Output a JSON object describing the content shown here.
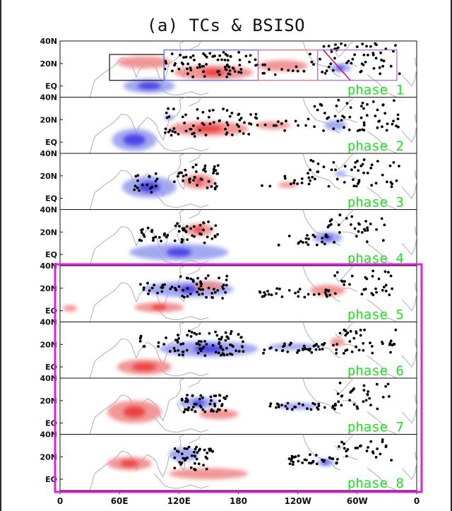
{
  "title": "(a) TCs & BSISO",
  "colors": {
    "positive": "#f08c8c",
    "positive_strong": "#ec3434",
    "negative": "#9aa0ee",
    "negative_strong": "#3c36e6",
    "dot": "#000000",
    "phase_label": "#1ee01e",
    "highlight_box": "#e01ee0",
    "coast": "#9a9a9a"
  },
  "chart_data": {
    "type": "map-panels",
    "title": "(a) TCs & BSISO",
    "lon_ticks": [
      "0",
      "60E",
      "120E",
      "180",
      "120W",
      "60W",
      "0"
    ],
    "lat_ticks": [
      "40N",
      "20N",
      "EQ"
    ],
    "x_range_deg": [
      0,
      360
    ],
    "y_range_deg": [
      -10,
      40
    ],
    "highlight_box": {
      "phases": [
        5,
        8
      ]
    },
    "panels": [
      {
        "phase": 1,
        "label": "phase 1",
        "regions": [
          {
            "name": "region-1",
            "lon": [
              50,
              105
            ],
            "lat": [
              5,
              28
            ],
            "color": "#333333"
          },
          {
            "name": "region-2",
            "lon": [
              105,
              200
            ],
            "lat": [
              5,
              32
            ],
            "color": "#6a7ae6"
          },
          {
            "name": "region-3",
            "lon": [
              200,
              260
            ],
            "lat": [
              5,
              32
            ],
            "color": "#e07a8a"
          },
          {
            "name": "region-4",
            "lon": [
              260,
              340
            ],
            "lat": [
              5,
              32
            ],
            "color": "#b27ad8"
          }
        ],
        "blobs": [
          {
            "s": "neg",
            "lon": 90,
            "lat": 0,
            "w": 52,
            "h": 13,
            "strong": 0.45
          },
          {
            "s": "pos",
            "lon": 85,
            "lat": 21,
            "w": 55,
            "h": 11,
            "strong": 0
          },
          {
            "s": "pos",
            "lon": 155,
            "lat": 12,
            "w": 80,
            "h": 13,
            "strong": 0.3
          },
          {
            "s": "pos",
            "lon": 225,
            "lat": 18,
            "w": 50,
            "h": 10,
            "strong": 0
          },
          {
            "s": "neg",
            "lon": 283,
            "lat": 16,
            "w": 22,
            "h": 8,
            "strong": 0.3
          }
        ],
        "tc": [
          {
            "lon": [
              105,
              200
            ],
            "lat": [
              8,
              30
            ],
            "n": 75
          },
          {
            "lon": [
              200,
              250
            ],
            "lat": [
              10,
              20
            ],
            "n": 12
          },
          {
            "lon": [
              250,
              345
            ],
            "lat": [
              10,
              38
            ],
            "n": 55
          }
        ]
      },
      {
        "phase": 2,
        "label": "phase 2",
        "blobs": [
          {
            "s": "neg",
            "lon": 75,
            "lat": 2,
            "w": 45,
            "h": 20,
            "strong": 0.5
          },
          {
            "s": "neg",
            "lon": 110,
            "lat": 22,
            "w": 10,
            "h": 5,
            "strong": 0
          },
          {
            "s": "pos",
            "lon": 150,
            "lat": 12,
            "w": 80,
            "h": 13,
            "strong": 0.35
          },
          {
            "s": "pos",
            "lon": 215,
            "lat": 15,
            "w": 35,
            "h": 7,
            "strong": 0
          },
          {
            "s": "neg",
            "lon": 278,
            "lat": 15,
            "w": 22,
            "h": 9,
            "strong": 0
          }
        ],
        "tc": [
          {
            "lon": [
              105,
              200
            ],
            "lat": [
              5,
              30
            ],
            "n": 65
          },
          {
            "lon": [
              200,
              250
            ],
            "lat": [
              10,
              20
            ],
            "n": 10
          },
          {
            "lon": [
              250,
              345
            ],
            "lat": [
              10,
              38
            ],
            "n": 55
          }
        ]
      },
      {
        "phase": 3,
        "label": "phase 3",
        "blobs": [
          {
            "s": "neg",
            "lon": 90,
            "lat": 10,
            "w": 55,
            "h": 19,
            "strong": 0.4
          },
          {
            "s": "pos",
            "lon": 140,
            "lat": 15,
            "w": 32,
            "h": 13,
            "strong": 0.2
          },
          {
            "s": "neg",
            "lon": 283,
            "lat": 22,
            "w": 12,
            "h": 5,
            "strong": 0
          },
          {
            "s": "pos",
            "lon": 230,
            "lat": 12,
            "w": 20,
            "h": 5,
            "strong": 0
          }
        ],
        "tc": [
          {
            "lon": [
              70,
              100
            ],
            "lat": [
              5,
              22
            ],
            "n": 18
          },
          {
            "lon": [
              115,
              160
            ],
            "lat": [
              8,
              30
            ],
            "n": 40
          },
          {
            "lon": [
              200,
              250
            ],
            "lat": [
              10,
              20
            ],
            "n": 10
          },
          {
            "lon": [
              250,
              345
            ],
            "lat": [
              10,
              36
            ],
            "n": 50
          }
        ]
      },
      {
        "phase": 4,
        "label": "phase 4",
        "blobs": [
          {
            "s": "neg",
            "lon": 120,
            "lat": 2,
            "w": 100,
            "h": 15,
            "strong": 0.25
          },
          {
            "s": "pos",
            "lon": 140,
            "lat": 22,
            "w": 30,
            "h": 11,
            "strong": 0.3
          },
          {
            "s": "neg",
            "lon": 270,
            "lat": 15,
            "w": 30,
            "h": 10,
            "strong": 0.3
          }
        ],
        "tc": [
          {
            "lon": [
              80,
              110
            ],
            "lat": [
              12,
              25
            ],
            "n": 20
          },
          {
            "lon": [
              115,
              160
            ],
            "lat": [
              10,
              30
            ],
            "n": 35
          },
          {
            "lon": [
              220,
              270
            ],
            "lat": [
              8,
              18
            ],
            "n": 20
          },
          {
            "lon": [
              270,
              330
            ],
            "lat": [
              10,
              36
            ],
            "n": 30
          }
        ]
      },
      {
        "phase": 5,
        "label": "phase 5",
        "blobs": [
          {
            "s": "pos",
            "lon": 100,
            "lat": 3,
            "w": 50,
            "h": 9,
            "strong": 0.3
          },
          {
            "s": "pos",
            "lon": 10,
            "lat": 2,
            "w": 14,
            "h": 6,
            "strong": 0
          },
          {
            "s": "neg",
            "lon": 130,
            "lat": 19,
            "w": 90,
            "h": 14,
            "strong": 0.2
          },
          {
            "s": "pos",
            "lon": 150,
            "lat": 22,
            "w": 30,
            "h": 8,
            "strong": 0
          },
          {
            "s": "pos",
            "lon": 270,
            "lat": 18,
            "w": 36,
            "h": 10,
            "strong": 0
          }
        ],
        "tc": [
          {
            "lon": [
              80,
              120
            ],
            "lat": [
              15,
              25
            ],
            "n": 20
          },
          {
            "lon": [
              120,
              170
            ],
            "lat": [
              10,
              32
            ],
            "n": 45
          },
          {
            "lon": [
              200,
              275
            ],
            "lat": [
              12,
              20
            ],
            "n": 30
          },
          {
            "lon": [
              275,
              340
            ],
            "lat": [
              14,
              36
            ],
            "n": 30
          }
        ]
      },
      {
        "phase": 6,
        "label": "phase 6",
        "blobs": [
          {
            "s": "pos",
            "lon": 85,
            "lat": 0,
            "w": 55,
            "h": 14,
            "strong": 0.45
          },
          {
            "s": "neg",
            "lon": 150,
            "lat": 16,
            "w": 100,
            "h": 14,
            "strong": 0.3
          },
          {
            "s": "neg",
            "lon": 235,
            "lat": 18,
            "w": 50,
            "h": 6,
            "strong": 0
          },
          {
            "s": "pos",
            "lon": 280,
            "lat": 22,
            "w": 15,
            "h": 8,
            "strong": 0
          }
        ],
        "tc": [
          {
            "lon": [
              80,
              110
            ],
            "lat": [
              18,
              28
            ],
            "n": 10
          },
          {
            "lon": [
              110,
              185
            ],
            "lat": [
              10,
              32
            ],
            "n": 80
          },
          {
            "lon": [
              205,
              280
            ],
            "lat": [
              12,
              22
            ],
            "n": 40
          },
          {
            "lon": [
              280,
              340
            ],
            "lat": [
              12,
              36
            ],
            "n": 35
          }
        ]
      },
      {
        "phase": 7,
        "label": "phase 7",
        "blobs": [
          {
            "s": "pos",
            "lon": 75,
            "lat": 10,
            "w": 55,
            "h": 20,
            "strong": 0.4
          },
          {
            "s": "pos",
            "lon": 160,
            "lat": 8,
            "w": 40,
            "h": 9,
            "strong": 0
          },
          {
            "s": "neg",
            "lon": 140,
            "lat": 18,
            "w": 40,
            "h": 10,
            "strong": 0.3
          },
          {
            "s": "neg",
            "lon": 240,
            "lat": 15,
            "w": 40,
            "h": 6,
            "strong": 0
          }
        ],
        "tc": [
          {
            "lon": [
              120,
              170
            ],
            "lat": [
              10,
              25
            ],
            "n": 50
          },
          {
            "lon": [
              210,
              280
            ],
            "lat": [
              12,
              18
            ],
            "n": 30
          },
          {
            "lon": [
              280,
              335
            ],
            "lat": [
              12,
              36
            ],
            "n": 30
          }
        ]
      },
      {
        "phase": 8,
        "label": "phase 8",
        "blobs": [
          {
            "s": "pos",
            "lon": 70,
            "lat": 14,
            "w": 45,
            "h": 12,
            "strong": 0.4
          },
          {
            "s": "pos",
            "lon": 150,
            "lat": 5,
            "w": 80,
            "h": 10,
            "strong": 0
          },
          {
            "s": "neg",
            "lon": 125,
            "lat": 22,
            "w": 30,
            "h": 12,
            "strong": 0
          },
          {
            "s": "neg",
            "lon": 268,
            "lat": 15,
            "w": 18,
            "h": 7,
            "strong": 0.35
          }
        ],
        "tc": [
          {
            "lon": [
              115,
              155
            ],
            "lat": [
              8,
              30
            ],
            "n": 45
          },
          {
            "lon": [
              230,
              280
            ],
            "lat": [
              12,
              22
            ],
            "n": 30
          },
          {
            "lon": [
              280,
              335
            ],
            "lat": [
              15,
              36
            ],
            "n": 25
          }
        ]
      }
    ]
  }
}
